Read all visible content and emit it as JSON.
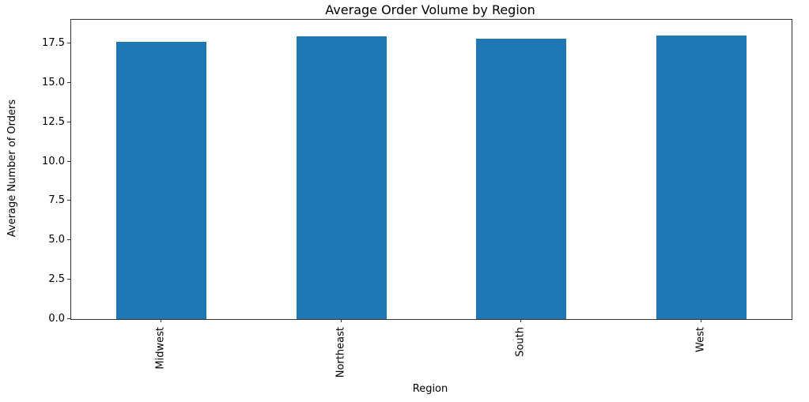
{
  "chart_data": {
    "type": "bar",
    "title": "Average Order Volume by Region",
    "xlabel": "Region",
    "ylabel": "Average Number of Orders",
    "categories": [
      "Midwest",
      "Northeast",
      "South",
      "West"
    ],
    "values": [
      17.6,
      17.95,
      17.8,
      18.0
    ],
    "ytick_labels": [
      "0.0",
      "2.5",
      "5.0",
      "7.5",
      "10.0",
      "12.5",
      "15.0",
      "17.5"
    ],
    "yticks": [
      0.0,
      2.5,
      5.0,
      7.5,
      10.0,
      12.5,
      15.0,
      17.5
    ],
    "ylim": [
      0,
      19.0
    ],
    "bar_color": "#1f77b4",
    "spine_color": "#333333",
    "background_color": "#ffffff",
    "bar_width_fraction": 0.5,
    "x_tick_rotation_deg": 90,
    "grid": false,
    "legend": null
  }
}
